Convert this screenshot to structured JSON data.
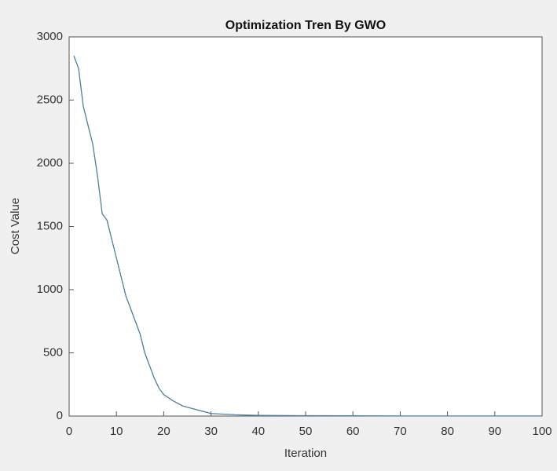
{
  "chart_data": {
    "type": "line",
    "title": "Optimization Tren By GWO",
    "x_label": "Iteration",
    "y_label": "Cost Value",
    "x": [
      1,
      2,
      3,
      4,
      5,
      6,
      7,
      8,
      9,
      10,
      11,
      12,
      13,
      14,
      15,
      16,
      17,
      18,
      19,
      20,
      22,
      24,
      26,
      28,
      30,
      35,
      40,
      50,
      60,
      70,
      80,
      90,
      100
    ],
    "series": [
      {
        "name": "Cost Value",
        "color": "#4f7f9c",
        "values": [
          2850,
          2750,
          2450,
          2300,
          2150,
          1900,
          1600,
          1550,
          1400,
          1250,
          1100,
          950,
          850,
          750,
          650,
          500,
          400,
          300,
          220,
          170,
          120,
          80,
          60,
          40,
          20,
          10,
          5,
          3,
          2,
          1,
          1,
          1,
          1
        ]
      }
    ],
    "xlim": [
      0,
      100
    ],
    "xticks": [
      0,
      10,
      20,
      30,
      40,
      50,
      60,
      70,
      80,
      90,
      100
    ],
    "ylim": [
      0,
      3000
    ],
    "yticks": [
      0,
      500,
      1000,
      1500,
      2000,
      2500,
      3000
    ],
    "grid": false
  }
}
